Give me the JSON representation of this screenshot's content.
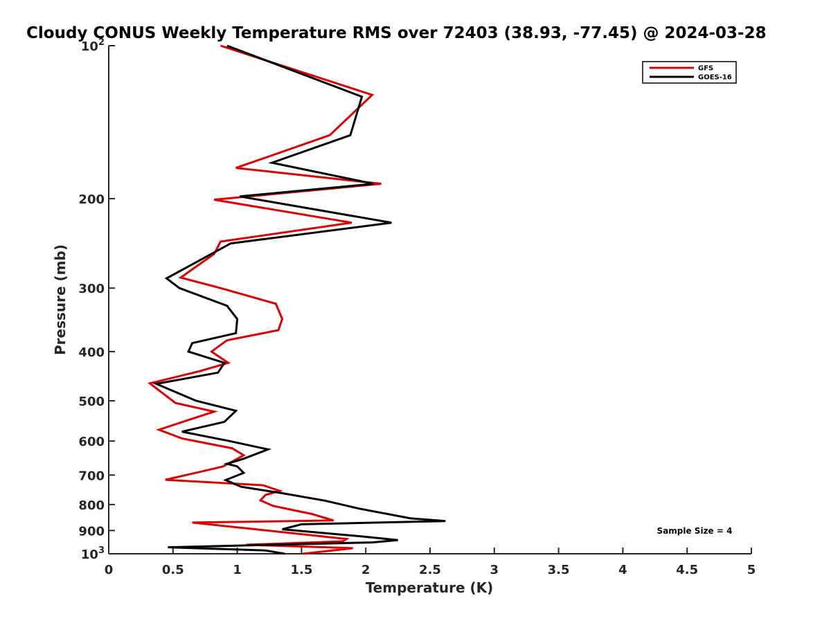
{
  "chart_data": {
    "type": "line",
    "title": "Cloudy CONUS Weekly Temperature RMS over 72403 (38.93, -77.45) @ 2024-03-28",
    "xlabel": "Temperature (K)",
    "ylabel": "Pressure (mb)",
    "xlim": [
      0,
      5
    ],
    "ylim": [
      100,
      1000
    ],
    "y_scale": "log",
    "y_reversed": true,
    "x_ticks": [
      0,
      0.5,
      1,
      1.5,
      2,
      2.5,
      3,
      3.5,
      4,
      4.5,
      5
    ],
    "x_tick_labels": [
      "0",
      "0.5",
      "1",
      "1.5",
      "2",
      "2.5",
      "3",
      "3.5",
      "4",
      "4.5",
      "5"
    ],
    "y_ticks": [
      {
        "value": 100,
        "base": "10",
        "exp": "2"
      },
      {
        "value": 200,
        "label": "200"
      },
      {
        "value": 300,
        "label": "300"
      },
      {
        "value": 400,
        "label": "400"
      },
      {
        "value": 500,
        "label": "500"
      },
      {
        "value": 600,
        "label": "600"
      },
      {
        "value": 700,
        "label": "700"
      },
      {
        "value": 800,
        "label": "800"
      },
      {
        "value": 900,
        "label": "900"
      },
      {
        "value": 1000,
        "base": "10",
        "exp": "3"
      }
    ],
    "grid": false,
    "legend_position": "top-right",
    "annotation": "Sample Size = 4",
    "series": [
      {
        "name": "GFS",
        "color": "#e00000",
        "points": [
          [
            0.87,
            100
          ],
          [
            2.05,
            125
          ],
          [
            1.72,
            150
          ],
          [
            0.99,
            174
          ],
          [
            2.12,
            187
          ],
          [
            0.82,
            201
          ],
          [
            1.89,
            223
          ],
          [
            0.87,
            243
          ],
          [
            0.82,
            257
          ],
          [
            0.56,
            286
          ],
          [
            0.87,
            300
          ],
          [
            1.3,
            322
          ],
          [
            1.35,
            345
          ],
          [
            1.32,
            363
          ],
          [
            0.92,
            380
          ],
          [
            0.8,
            400
          ],
          [
            0.93,
            421
          ],
          [
            0.71,
            437
          ],
          [
            0.32,
            462
          ],
          [
            0.52,
            505
          ],
          [
            0.82,
            525
          ],
          [
            0.39,
            570
          ],
          [
            0.57,
            593
          ],
          [
            0.96,
            620
          ],
          [
            1.05,
            640
          ],
          [
            0.89,
            673
          ],
          [
            0.71,
            690
          ],
          [
            0.44,
            715
          ],
          [
            1.2,
            733
          ],
          [
            1.33,
            752
          ],
          [
            1.22,
            766
          ],
          [
            1.18,
            785
          ],
          [
            1.28,
            805
          ],
          [
            1.58,
            835
          ],
          [
            1.75,
            860
          ],
          [
            0.65,
            868
          ],
          [
            1.85,
            935
          ],
          [
            1.82,
            945
          ],
          [
            1.07,
            960
          ],
          [
            1.9,
            975
          ],
          [
            1.51,
            1000
          ]
        ]
      },
      {
        "name": "GOES-16",
        "color": "#000000",
        "points": [
          [
            0.92,
            100
          ],
          [
            1.97,
            126
          ],
          [
            1.88,
            150
          ],
          [
            1.27,
            170
          ],
          [
            2.06,
            187
          ],
          [
            1.02,
            198
          ],
          [
            2.2,
            223
          ],
          [
            0.95,
            245
          ],
          [
            0.45,
            287
          ],
          [
            0.55,
            300
          ],
          [
            0.92,
            325
          ],
          [
            1.0,
            345
          ],
          [
            0.99,
            368
          ],
          [
            0.65,
            385
          ],
          [
            0.62,
            400
          ],
          [
            0.9,
            421
          ],
          [
            0.85,
            440
          ],
          [
            0.37,
            463
          ],
          [
            0.68,
            500
          ],
          [
            0.99,
            523
          ],
          [
            0.9,
            550
          ],
          [
            0.57,
            575
          ],
          [
            0.94,
            600
          ],
          [
            1.24,
            623
          ],
          [
            1.05,
            650
          ],
          [
            0.92,
            665
          ],
          [
            1.0,
            673
          ],
          [
            1.05,
            693
          ],
          [
            0.91,
            716
          ],
          [
            1.03,
            738
          ],
          [
            1.35,
            760
          ],
          [
            1.68,
            786
          ],
          [
            1.95,
            815
          ],
          [
            2.35,
            852
          ],
          [
            2.62,
            862
          ],
          [
            1.5,
            875
          ],
          [
            1.35,
            895
          ],
          [
            1.98,
            925
          ],
          [
            2.25,
            940
          ],
          [
            2.05,
            950
          ],
          [
            0.46,
            971
          ],
          [
            1.22,
            985
          ],
          [
            1.37,
            1000
          ]
        ]
      }
    ]
  }
}
